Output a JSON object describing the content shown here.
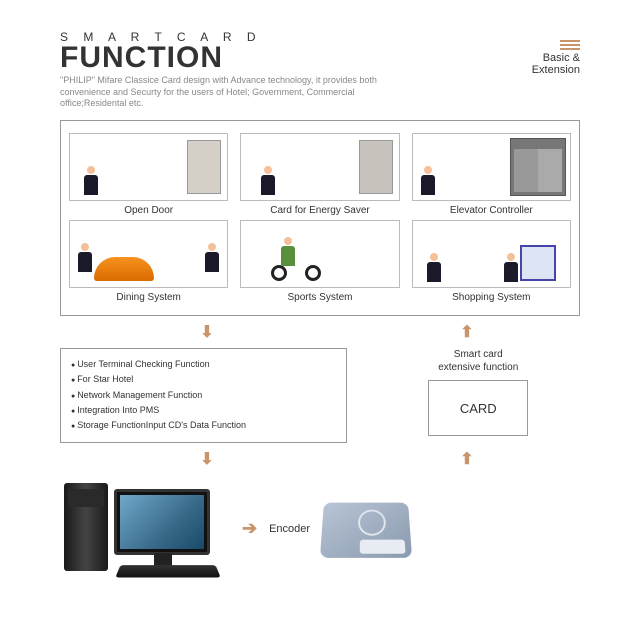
{
  "header": {
    "small_title": "S M A R T   C A R D",
    "big_title": "FUNCTION",
    "right_label": "Basic &\nExtension",
    "description": "\"PHILIP\" Mifare Classice Card design with Advance technology, it provides both convenience and Securty for the users of Hotel; Government, Commercial office;Residental etc."
  },
  "grid": {
    "cells": [
      {
        "label": "Open Door"
      },
      {
        "label": "Card for Energy Saver"
      },
      {
        "label": "Elevator Controller"
      },
      {
        "label": "Dining System"
      },
      {
        "label": "Sports System"
      },
      {
        "label": "Shopping System"
      }
    ]
  },
  "bullets": [
    "User Terminal Checking Function",
    "For Star Hotel",
    "Network Management Function",
    "Integration Into PMS",
    "Storage FunctionInput CD's Data Function"
  ],
  "extensive_label": "Smart card\nextensive function",
  "card_label": "CARD",
  "encoder_label": "Encoder",
  "colors": {
    "accent": "#c9946a",
    "border": "#999999",
    "text_muted": "#888888"
  },
  "arrows": {
    "down": "⬇",
    "up": "⬆",
    "right": "➔"
  }
}
